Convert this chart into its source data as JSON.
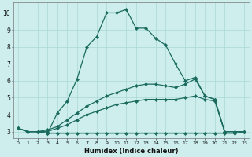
{
  "xlabel": "Humidex (Indice chaleur)",
  "background_color": "#cdeeed",
  "line_color": "#1a6b5e",
  "grid_color": "#aad8d5",
  "xlim": [
    -0.5,
    23.5
  ],
  "ylim": [
    2.6,
    10.6
  ],
  "xticks": [
    0,
    1,
    2,
    3,
    4,
    5,
    6,
    7,
    8,
    9,
    10,
    11,
    12,
    13,
    14,
    15,
    16,
    17,
    18,
    19,
    20,
    21,
    22,
    23
  ],
  "yticks": [
    3,
    4,
    5,
    6,
    7,
    8,
    9,
    10
  ],
  "lines": [
    {
      "x": [
        0,
        1,
        2,
        3,
        4,
        5,
        6,
        7,
        8,
        9,
        10,
        11,
        12,
        13,
        14,
        15,
        16,
        17,
        18,
        19,
        20,
        21,
        22,
        23
      ],
      "y": [
        3.2,
        3.0,
        3.0,
        2.9,
        4.1,
        4.8,
        6.1,
        8.0,
        8.6,
        10.0,
        10.0,
        10.2,
        9.1,
        9.1,
        8.5,
        8.1,
        7.0,
        6.0,
        6.2,
        5.1,
        4.9,
        3.0,
        3.0,
        3.0
      ]
    },
    {
      "x": [
        0,
        1,
        2,
        3,
        4,
        5,
        6,
        7,
        8,
        9,
        10,
        11,
        12,
        13,
        14,
        15,
        16,
        17,
        18,
        19,
        20,
        21,
        22,
        23
      ],
      "y": [
        3.2,
        3.0,
        3.0,
        2.9,
        2.9,
        2.9,
        2.9,
        2.9,
        2.9,
        2.9,
        2.9,
        2.9,
        2.9,
        2.9,
        2.9,
        2.9,
        2.9,
        2.9,
        2.9,
        2.9,
        2.9,
        2.9,
        2.9,
        3.0
      ]
    },
    {
      "x": [
        0,
        1,
        2,
        3,
        4,
        5,
        6,
        7,
        8,
        9,
        10,
        11,
        12,
        13,
        14,
        15,
        16,
        17,
        18,
        19,
        20,
        21,
        22,
        23
      ],
      "y": [
        3.2,
        3.0,
        3.0,
        3.1,
        3.3,
        3.7,
        4.1,
        4.5,
        4.8,
        5.1,
        5.3,
        5.5,
        5.7,
        5.8,
        5.8,
        5.7,
        5.6,
        5.8,
        6.1,
        5.1,
        4.9,
        3.0,
        3.0,
        3.0
      ]
    },
    {
      "x": [
        0,
        1,
        2,
        3,
        4,
        5,
        6,
        7,
        8,
        9,
        10,
        11,
        12,
        13,
        14,
        15,
        16,
        17,
        18,
        19,
        20,
        21,
        22,
        23
      ],
      "y": [
        3.2,
        3.0,
        3.0,
        3.0,
        3.2,
        3.4,
        3.7,
        4.0,
        4.2,
        4.4,
        4.6,
        4.7,
        4.8,
        4.9,
        4.9,
        4.9,
        4.9,
        5.0,
        5.1,
        4.9,
        4.8,
        3.0,
        3.0,
        3.0
      ]
    }
  ]
}
